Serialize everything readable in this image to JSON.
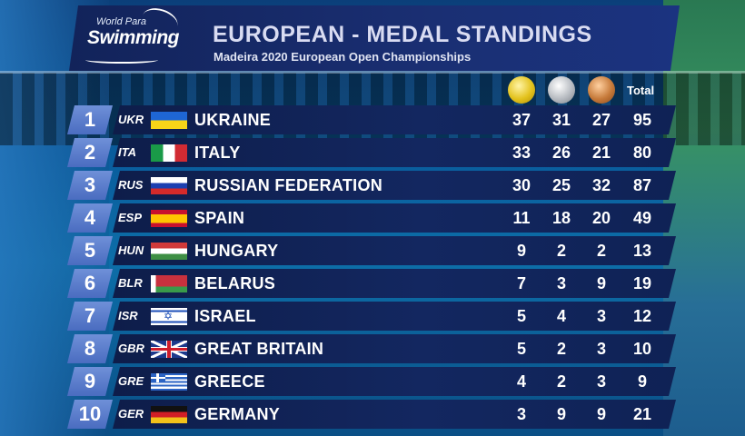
{
  "header": {
    "logo_top": "World Para",
    "logo_main": "Swimming",
    "title": "EUROPEAN - MEDAL STANDINGS",
    "subtitle": "Madeira 2020 European Open Championships"
  },
  "columns": {
    "gold_icon": "gold-medal-icon",
    "silver_icon": "silver-medal-icon",
    "bronze_icon": "bronze-medal-icon",
    "total": "Total"
  },
  "colors": {
    "header_bg": "#1a2f73",
    "row_bg": "#132760",
    "rank_bg": "#5a7ccc",
    "text": "#ffffff"
  },
  "rows": [
    {
      "rank": "1",
      "code": "UKR",
      "flag": "ukraine-flag-icon",
      "name": "UKRAINE",
      "gold": "37",
      "silver": "31",
      "bronze": "27",
      "total": "95"
    },
    {
      "rank": "2",
      "code": "ITA",
      "flag": "italy-flag-icon",
      "name": "ITALY",
      "gold": "33",
      "silver": "26",
      "bronze": "21",
      "total": "80"
    },
    {
      "rank": "3",
      "code": "RUS",
      "flag": "russia-flag-icon",
      "name": "RUSSIAN FEDERATION",
      "gold": "30",
      "silver": "25",
      "bronze": "32",
      "total": "87"
    },
    {
      "rank": "4",
      "code": "ESP",
      "flag": "spain-flag-icon",
      "name": "SPAIN",
      "gold": "11",
      "silver": "18",
      "bronze": "20",
      "total": "49"
    },
    {
      "rank": "5",
      "code": "HUN",
      "flag": "hungary-flag-icon",
      "name": "HUNGARY",
      "gold": "9",
      "silver": "2",
      "bronze": "2",
      "total": "13"
    },
    {
      "rank": "6",
      "code": "BLR",
      "flag": "belarus-flag-icon",
      "name": "BELARUS",
      "gold": "7",
      "silver": "3",
      "bronze": "9",
      "total": "19"
    },
    {
      "rank": "7",
      "code": "ISR",
      "flag": "israel-flag-icon",
      "name": "ISRAEL",
      "gold": "5",
      "silver": "4",
      "bronze": "3",
      "total": "12"
    },
    {
      "rank": "8",
      "code": "GBR",
      "flag": "great-britain-flag-icon",
      "name": "GREAT BRITAIN",
      "gold": "5",
      "silver": "2",
      "bronze": "3",
      "total": "10"
    },
    {
      "rank": "9",
      "code": "GRE",
      "flag": "greece-flag-icon",
      "name": "GREECE",
      "gold": "4",
      "silver": "2",
      "bronze": "3",
      "total": "9"
    },
    {
      "rank": "10",
      "code": "GER",
      "flag": "germany-flag-icon",
      "name": "GERMANY",
      "gold": "3",
      "silver": "9",
      "bronze": "9",
      "total": "21"
    }
  ]
}
